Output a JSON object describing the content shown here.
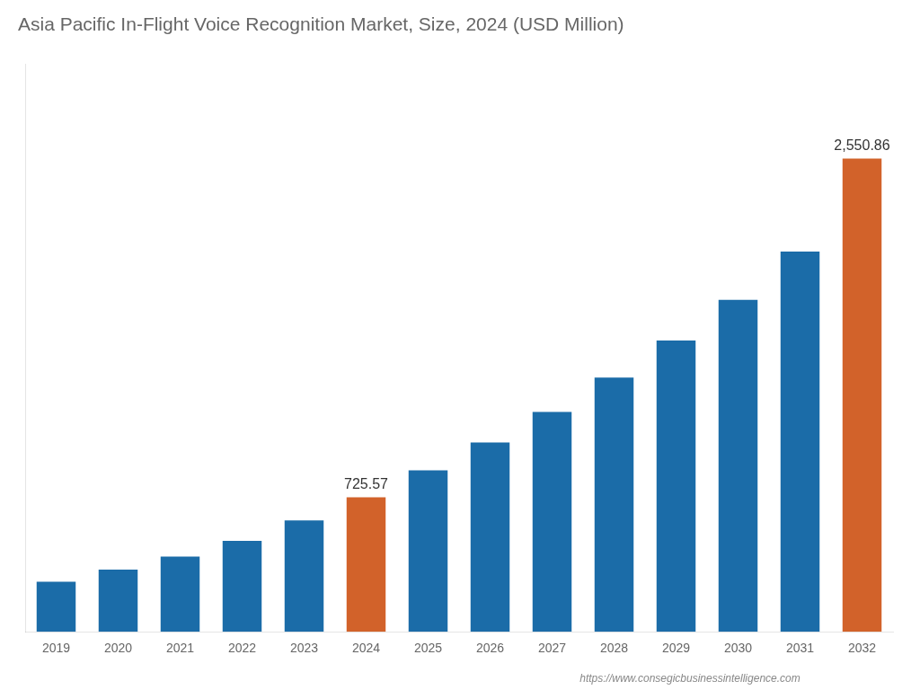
{
  "chart_data": {
    "type": "bar",
    "title": "Asia Pacific In-Flight Voice Recognition Market, Size, 2024 (USD Million)",
    "categories": [
      2019,
      2020,
      2021,
      2022,
      2023,
      2024,
      2025,
      2026,
      2027,
      2028,
      2029,
      2030,
      2031,
      2032
    ],
    "values": [
      270,
      335,
      405,
      490,
      600,
      725.57,
      870,
      1020,
      1185,
      1370,
      1570,
      1790,
      2050,
      2550.86
    ],
    "value_labels": [
      null,
      null,
      null,
      null,
      null,
      "725.57",
      null,
      null,
      null,
      null,
      null,
      null,
      null,
      "2,550.86"
    ],
    "colors": [
      "#1B6CA8",
      "#1B6CA8",
      "#1B6CA8",
      "#1B6CA8",
      "#1B6CA8",
      "#D2622A",
      "#1B6CA8",
      "#1B6CA8",
      "#1B6CA8",
      "#1B6CA8",
      "#1B6CA8",
      "#1B6CA8",
      "#1B6CA8",
      "#D2622A"
    ],
    "ylim": [
      0,
      3061.032
    ],
    "grid": false,
    "tick_labels": "x",
    "annotations": [
      "https://www.consegicbusinessintelligence.com"
    ]
  }
}
